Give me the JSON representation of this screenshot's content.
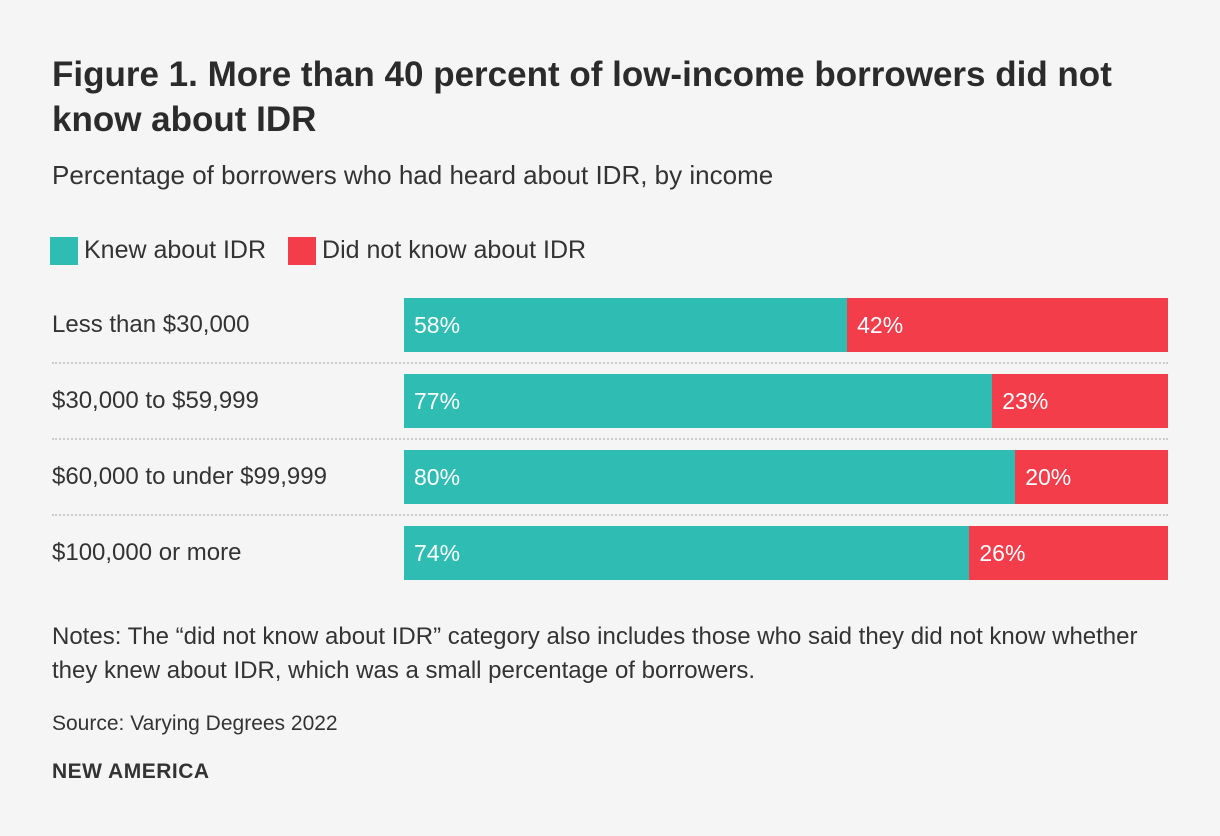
{
  "colors": {
    "knew": "#2ebcb3",
    "did_not_know": "#f43d4a",
    "background": "#f5f5f5"
  },
  "chart_data": {
    "type": "bar",
    "orientation": "horizontal",
    "stacked": true,
    "title": "Figure 1. More than 40 percent of low-income borrowers did not know about IDR",
    "subtitle": "Percentage of borrowers who had heard about IDR, by income",
    "categories": [
      "Less than $30,000",
      "$30,000 to $59,999",
      "$60,000 to under $99,999",
      "$100,000 or more"
    ],
    "series": [
      {
        "name": "Knew about IDR",
        "values": [
          58,
          77,
          80,
          74
        ],
        "labels": [
          "58%",
          "77%",
          "80%",
          "74%"
        ]
      },
      {
        "name": "Did not know about IDR",
        "values": [
          42,
          23,
          20,
          26
        ],
        "labels": [
          "42%",
          "23%",
          "20%",
          "26%"
        ]
      }
    ],
    "xlim": [
      0,
      100
    ],
    "legend": "top-left",
    "grid": false
  },
  "notes": "Notes: The “did not know about IDR” category also includes those who said they did not know whether they knew about IDR, which was a small percentage of borrowers.",
  "source": "Source: Varying Degrees 2022",
  "brand": "NEW AMERICA"
}
